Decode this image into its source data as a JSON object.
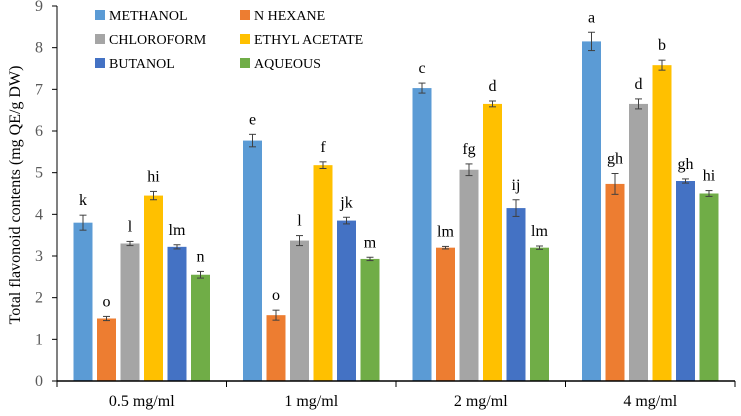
{
  "chart_data": {
    "type": "bar",
    "title": "",
    "xlabel": "",
    "ylabel": "Total flavonoid contents (mg QE/g DW)",
    "ylim": [
      0,
      9
    ],
    "yticks": [
      "0",
      "1",
      "2",
      "3",
      "4",
      "5",
      "6",
      "7",
      "8",
      "9"
    ],
    "grid": false,
    "legend_placement": "top-left",
    "categories": [
      "0.5 mg/ml",
      "1 mg/ml",
      "2 mg/ml",
      "4 mg/ml"
    ],
    "series": [
      {
        "name": "METHANOL",
        "color": "#5b9bd5",
        "values": [
          3.8,
          5.77,
          7.03,
          8.15
        ],
        "errors": [
          0.18,
          0.15,
          0.12,
          0.22
        ],
        "letters": [
          "k",
          "e",
          "c",
          "a"
        ]
      },
      {
        "name": "N HEXANE",
        "color": "#ed7d31",
        "values": [
          1.5,
          1.58,
          3.2,
          4.73
        ],
        "errors": [
          0.05,
          0.12,
          0.03,
          0.25
        ],
        "letters": [
          "o",
          "o",
          "lm",
          "gh"
        ]
      },
      {
        "name": "CHLOROFORM",
        "color": "#a5a5a5",
        "values": [
          3.3,
          3.37,
          5.07,
          6.65
        ],
        "errors": [
          0.05,
          0.12,
          0.14,
          0.12
        ],
        "letters": [
          "l",
          "l",
          "fg",
          "d"
        ]
      },
      {
        "name": "ETHYL ACETATE",
        "color": "#ffc000",
        "values": [
          4.45,
          5.18,
          6.65,
          7.58
        ],
        "errors": [
          0.1,
          0.08,
          0.07,
          0.12
        ],
        "letters": [
          "hi",
          "f",
          "d",
          "b"
        ]
      },
      {
        "name": "BUTANOL",
        "color": "#4472c4",
        "values": [
          3.22,
          3.85,
          4.15,
          4.8
        ],
        "errors": [
          0.05,
          0.08,
          0.2,
          0.05
        ],
        "letters": [
          "lm",
          "jk",
          "ij",
          "gh"
        ]
      },
      {
        "name": "AQUEOUS",
        "color": "#70ad47",
        "values": [
          2.55,
          2.93,
          3.2,
          4.5
        ],
        "errors": [
          0.08,
          0.04,
          0.04,
          0.07
        ],
        "letters": [
          "n",
          "m",
          "lm",
          "hi"
        ]
      }
    ]
  }
}
